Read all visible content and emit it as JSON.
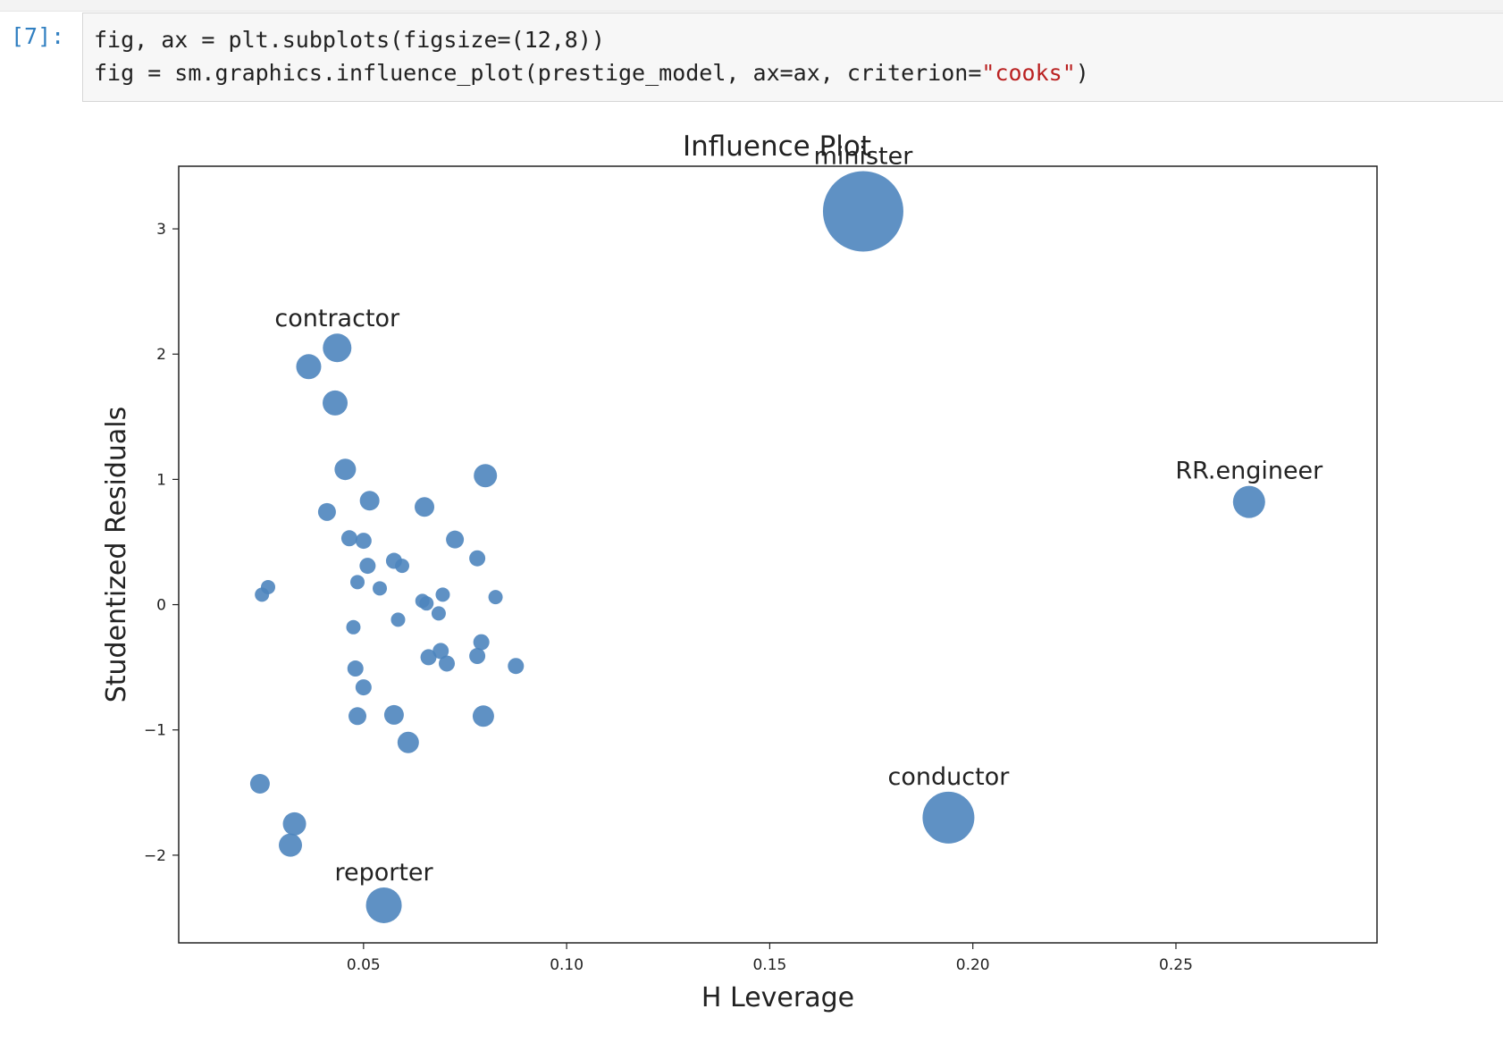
{
  "cell": {
    "prompt": "[7]:",
    "code_line1": "fig, ax = plt.subplots(figsize=(12,8))",
    "code_line2_pre": "fig = sm.graphics.influence_plot(prestige_model, ax=ax, criterion=",
    "code_line2_str": "\"cooks\"",
    "code_line2_post": ")"
  },
  "chart_data": {
    "type": "scatter",
    "title": "Influence Plot",
    "xlabel": "H Leverage",
    "ylabel": "Studentized Residuals",
    "xlim": [
      0.0045,
      0.2995
    ],
    "ylim": [
      -2.7,
      3.5
    ],
    "xticks": [
      0.05,
      0.1,
      0.15,
      0.2,
      0.25
    ],
    "xtick_labels": [
      "0.05",
      "0.10",
      "0.15",
      "0.20",
      "0.25"
    ],
    "yticks": [
      -2,
      -1,
      0,
      1,
      2,
      3
    ],
    "ytick_labels": [
      "−2",
      "−1",
      "0",
      "1",
      "2",
      "3"
    ],
    "grid": false,
    "color": "#4e85be",
    "points": [
      {
        "x": 0.173,
        "y": 3.14,
        "size": 45,
        "label": "minister"
      },
      {
        "x": 0.0435,
        "y": 2.05,
        "size": 16,
        "label": "contractor"
      },
      {
        "x": 0.268,
        "y": 0.82,
        "size": 18,
        "label": "RR.engineer"
      },
      {
        "x": 0.194,
        "y": -1.7,
        "size": 29,
        "label": "conductor"
      },
      {
        "x": 0.055,
        "y": -2.4,
        "size": 20,
        "label": "reporter"
      },
      {
        "x": 0.0365,
        "y": 1.9,
        "size": 14,
        "label": ""
      },
      {
        "x": 0.043,
        "y": 1.61,
        "size": 14,
        "label": ""
      },
      {
        "x": 0.0455,
        "y": 1.08,
        "size": 12,
        "label": ""
      },
      {
        "x": 0.08,
        "y": 1.03,
        "size": 13,
        "label": ""
      },
      {
        "x": 0.0515,
        "y": 0.83,
        "size": 11,
        "label": ""
      },
      {
        "x": 0.065,
        "y": 0.78,
        "size": 11,
        "label": ""
      },
      {
        "x": 0.041,
        "y": 0.74,
        "size": 10,
        "label": ""
      },
      {
        "x": 0.0465,
        "y": 0.53,
        "size": 9,
        "label": ""
      },
      {
        "x": 0.05,
        "y": 0.51,
        "size": 9,
        "label": ""
      },
      {
        "x": 0.0725,
        "y": 0.52,
        "size": 10,
        "label": ""
      },
      {
        "x": 0.078,
        "y": 0.37,
        "size": 9,
        "label": ""
      },
      {
        "x": 0.0575,
        "y": 0.35,
        "size": 9,
        "label": ""
      },
      {
        "x": 0.0595,
        "y": 0.31,
        "size": 8,
        "label": ""
      },
      {
        "x": 0.051,
        "y": 0.31,
        "size": 9,
        "label": ""
      },
      {
        "x": 0.0485,
        "y": 0.18,
        "size": 8,
        "label": ""
      },
      {
        "x": 0.054,
        "y": 0.13,
        "size": 8,
        "label": ""
      },
      {
        "x": 0.0265,
        "y": 0.14,
        "size": 8,
        "label": ""
      },
      {
        "x": 0.025,
        "y": 0.08,
        "size": 8,
        "label": ""
      },
      {
        "x": 0.0695,
        "y": 0.08,
        "size": 8,
        "label": ""
      },
      {
        "x": 0.0825,
        "y": 0.06,
        "size": 8,
        "label": ""
      },
      {
        "x": 0.0645,
        "y": 0.03,
        "size": 8,
        "label": ""
      },
      {
        "x": 0.0655,
        "y": 0.01,
        "size": 8,
        "label": ""
      },
      {
        "x": 0.0685,
        "y": -0.07,
        "size": 8,
        "label": ""
      },
      {
        "x": 0.0585,
        "y": -0.12,
        "size": 8,
        "label": ""
      },
      {
        "x": 0.0475,
        "y": -0.18,
        "size": 8,
        "label": ""
      },
      {
        "x": 0.079,
        "y": -0.3,
        "size": 9,
        "label": ""
      },
      {
        "x": 0.069,
        "y": -0.37,
        "size": 9,
        "label": ""
      },
      {
        "x": 0.078,
        "y": -0.41,
        "size": 9,
        "label": ""
      },
      {
        "x": 0.066,
        "y": -0.42,
        "size": 9,
        "label": ""
      },
      {
        "x": 0.0705,
        "y": -0.47,
        "size": 9,
        "label": ""
      },
      {
        "x": 0.0875,
        "y": -0.49,
        "size": 9,
        "label": ""
      },
      {
        "x": 0.048,
        "y": -0.51,
        "size": 9,
        "label": ""
      },
      {
        "x": 0.05,
        "y": -0.66,
        "size": 9,
        "label": ""
      },
      {
        "x": 0.0485,
        "y": -0.89,
        "size": 10,
        "label": ""
      },
      {
        "x": 0.0575,
        "y": -0.88,
        "size": 11,
        "label": ""
      },
      {
        "x": 0.0795,
        "y": -0.89,
        "size": 12,
        "label": ""
      },
      {
        "x": 0.061,
        "y": -1.1,
        "size": 12,
        "label": ""
      },
      {
        "x": 0.0245,
        "y": -1.43,
        "size": 11,
        "label": ""
      },
      {
        "x": 0.033,
        "y": -1.75,
        "size": 13,
        "label": ""
      },
      {
        "x": 0.032,
        "y": -1.92,
        "size": 13,
        "label": ""
      }
    ]
  }
}
